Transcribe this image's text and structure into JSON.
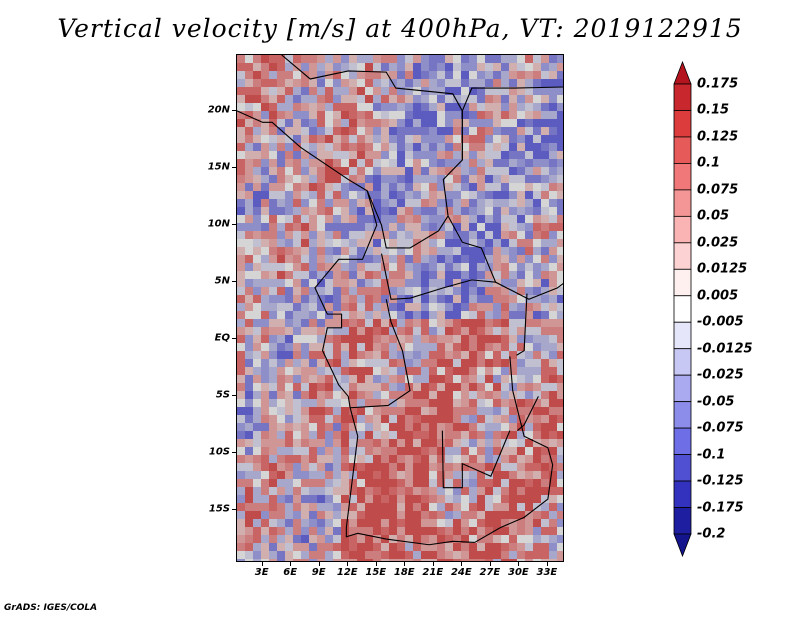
{
  "title": "Vertical velocity [m/s] at 400hPa, VT: 2019122915",
  "credit": "GrADS: IGES/COLA",
  "latitude_labels": [
    "20N",
    "15N",
    "10N",
    "5N",
    "EQ",
    "5S",
    "10S",
    "15S"
  ],
  "latitude_values": [
    20,
    15,
    10,
    5,
    0,
    -5,
    -10,
    -15
  ],
  "longitude_labels": [
    "3E",
    "6E",
    "9E",
    "12E",
    "15E",
    "18E",
    "21E",
    "24E",
    "27E",
    "30E",
    "33E"
  ],
  "longitude_values": [
    3,
    6,
    9,
    12,
    15,
    18,
    21,
    24,
    27,
    30,
    33
  ],
  "map_extent": {
    "lon_min": 0.3,
    "lon_max": 34.8,
    "lat_min": -19.6,
    "lat_max": 24.9
  },
  "colorbar": {
    "labels": [
      "0.175",
      "0.15",
      "0.125",
      "0.1",
      "0.075",
      "0.05",
      "0.025",
      "0.0125",
      "0.005",
      "-0.005",
      "-0.0125",
      "-0.025",
      "-0.05",
      "-0.075",
      "-0.1",
      "-0.125",
      "-0.175",
      "-0.2"
    ],
    "colors": [
      "#b4141e",
      "#c8282d",
      "#dc3c3c",
      "#e65a5a",
      "#f07878",
      "#f59696",
      "#fab4b4",
      "#fcd2d2",
      "#fff0f0",
      "#ffffff",
      "#e6e6fa",
      "#c8c8f5",
      "#aaaaf0",
      "#8c8ceb",
      "#6e6ee6",
      "#5050d2",
      "#3232be",
      "#1e1ea0",
      "#14148c"
    ]
  },
  "colors": {
    "land_positive": "#f0a0a0",
    "land_negative": "#a8a8f0",
    "border": "#000000"
  }
}
